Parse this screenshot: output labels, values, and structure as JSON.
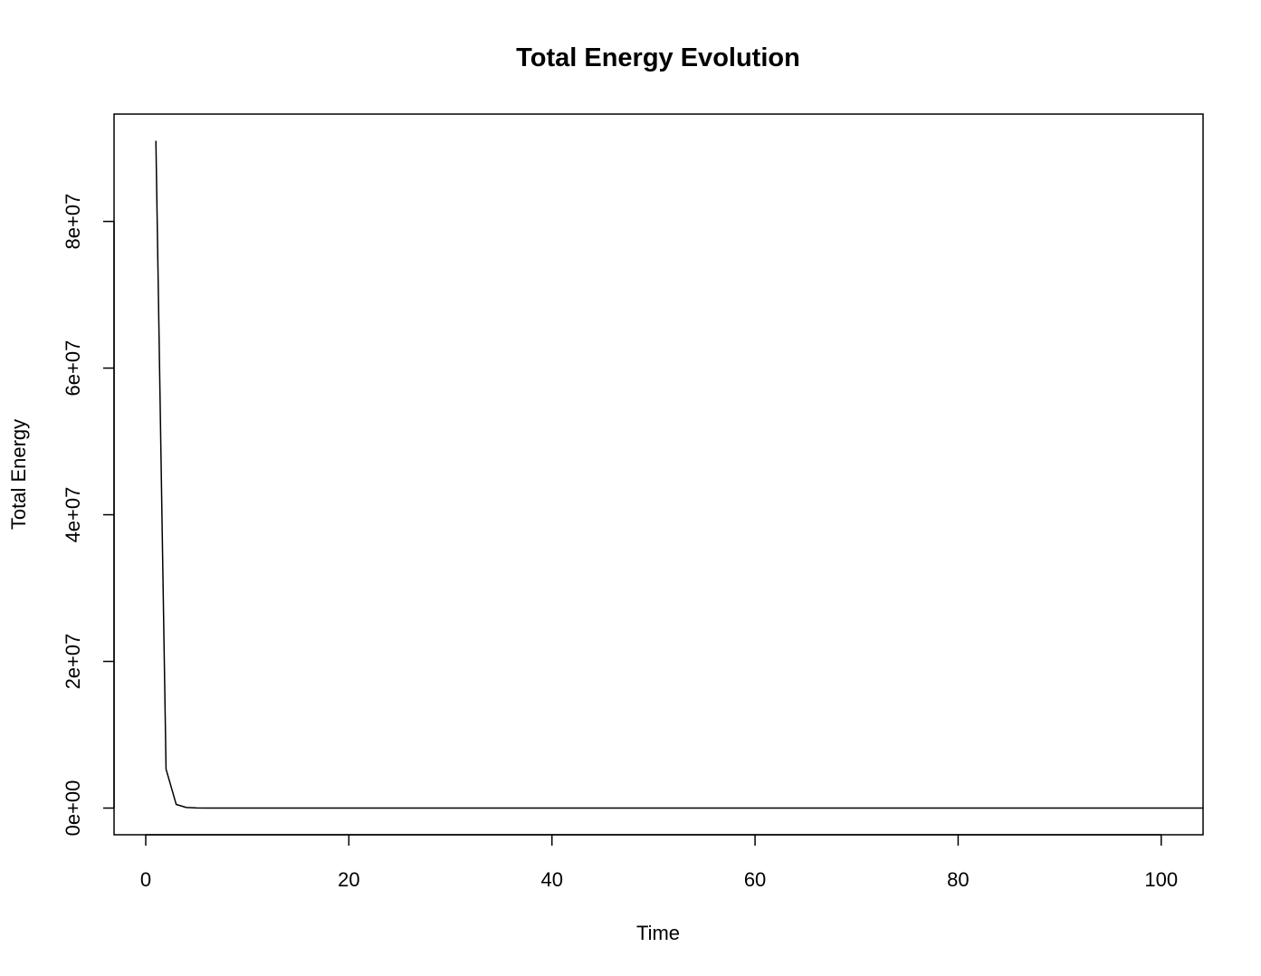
{
  "chart_data": {
    "type": "line",
    "title": "Total Energy Evolution",
    "xlabel": "Time",
    "ylabel": "Total Energy",
    "xlim": [
      -3.12,
      104.12
    ],
    "ylim": [
      -3640000,
      94640000
    ],
    "x_ticks": [
      0,
      20,
      40,
      60,
      80,
      100
    ],
    "x_tick_labels": [
      "0",
      "20",
      "40",
      "60",
      "80",
      "100"
    ],
    "y_ticks": [
      0,
      20000000,
      40000000,
      60000000,
      80000000
    ],
    "y_tick_labels": [
      "0e+00",
      "2e+07",
      "4e+07",
      "6e+07",
      "8e+07"
    ],
    "grid": false,
    "legend": "none",
    "line_color": "#000000",
    "series": [
      {
        "x": [
          1,
          2,
          3,
          4,
          5,
          6,
          8,
          10,
          15,
          20,
          30,
          40,
          50,
          60,
          70,
          80,
          90,
          100,
          104.12
        ],
        "values": [
          91000000,
          5300000,
          500000,
          80000,
          15000,
          5000,
          2000,
          1000,
          500,
          300,
          200,
          150,
          120,
          100,
          90,
          80,
          70,
          60,
          60
        ]
      }
    ]
  }
}
